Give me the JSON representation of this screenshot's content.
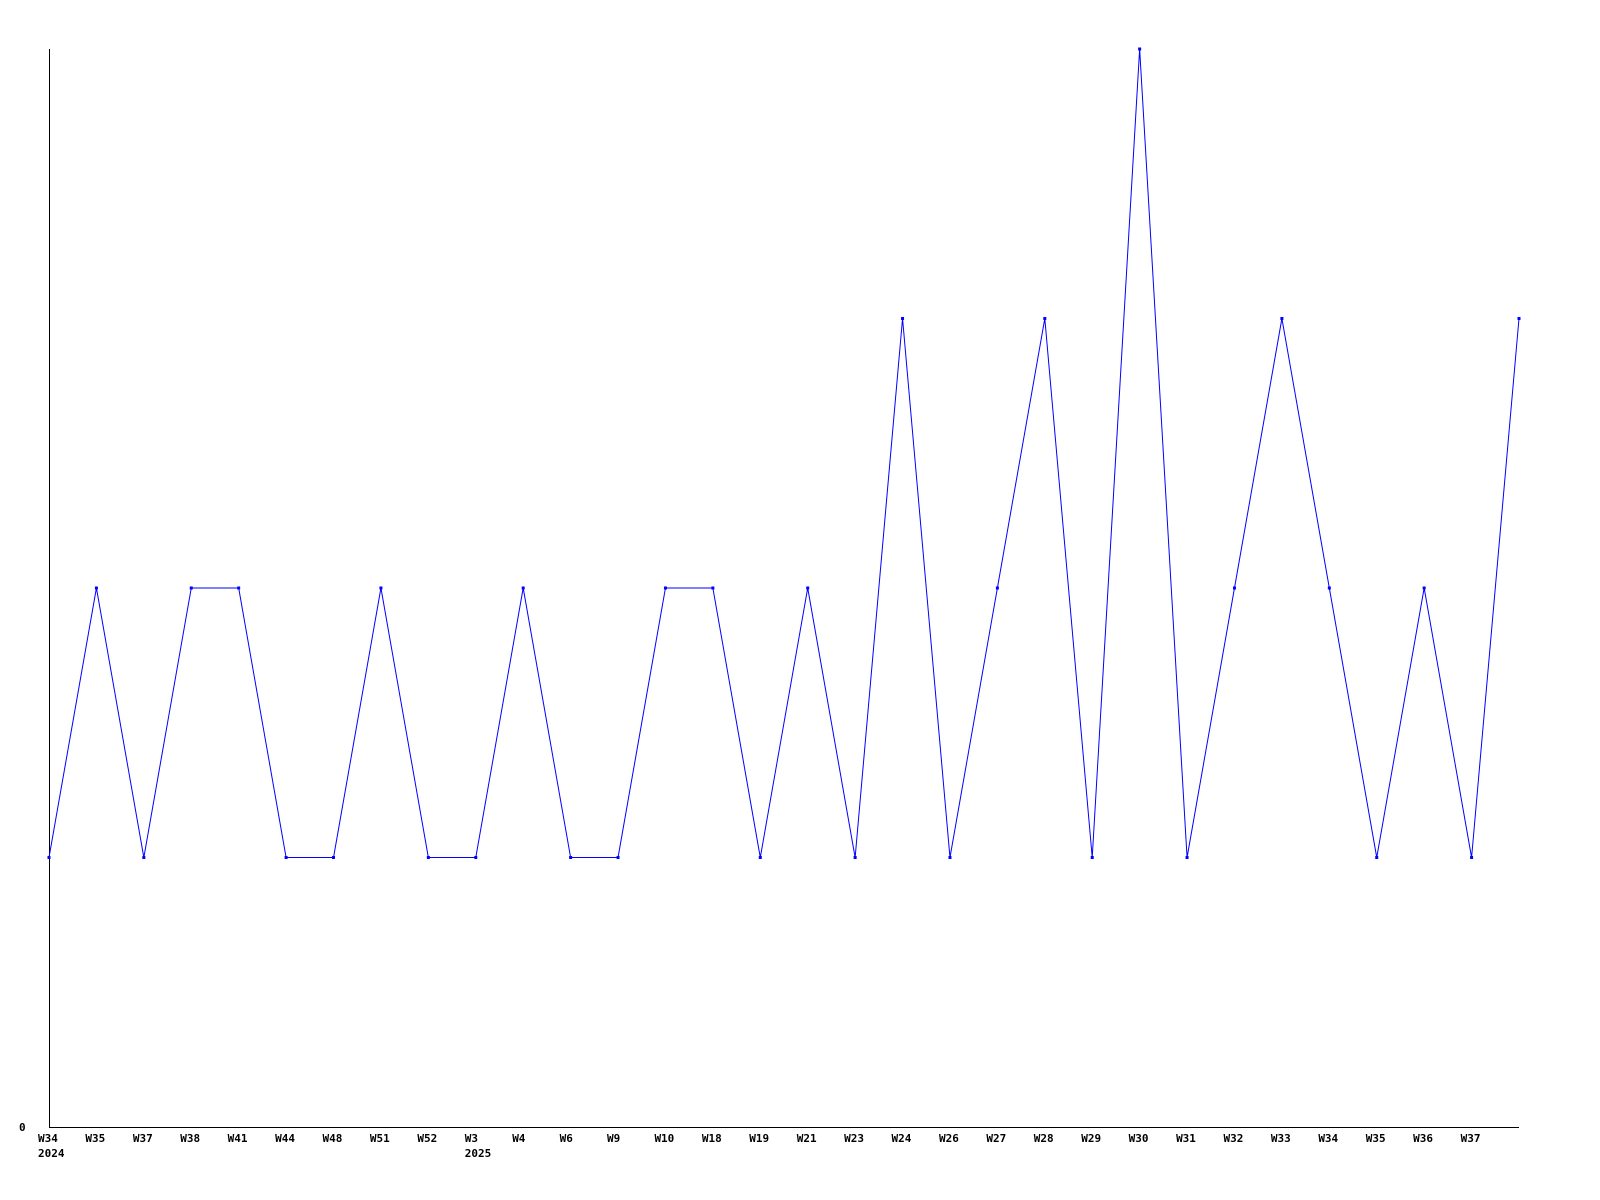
{
  "chart_data": {
    "type": "line",
    "title": "",
    "xlabel": "",
    "ylabel": "",
    "ylim": [
      0,
      4
    ],
    "y_tick_labels": [
      "0"
    ],
    "grid": false,
    "legend": "none",
    "line_color": "#0000ff",
    "categories": [
      "W34",
      "W35",
      "W37",
      "W38",
      "W41",
      "W44",
      "W48",
      "W51",
      "W52",
      "W3",
      "W4",
      "W6",
      "W9",
      "W10",
      "W18",
      "W19",
      "W21",
      "W23",
      "W24",
      "W26",
      "W27",
      "W28",
      "W29",
      "W30",
      "W31",
      "W32",
      "W33",
      "W34",
      "W35",
      "W36",
      "W37",
      ""
    ],
    "year_labels": [
      {
        "at": "W34",
        "index": 0,
        "text": "2024"
      },
      {
        "at": "W3",
        "index": 9,
        "text": "2025"
      }
    ],
    "values": [
      1,
      2,
      1,
      2,
      2,
      1,
      1,
      2,
      1,
      1,
      2,
      1,
      1,
      2,
      2,
      1,
      2,
      1,
      3,
      1,
      2,
      3,
      1,
      4,
      1,
      2,
      3,
      2,
      1,
      2,
      1,
      3
    ]
  }
}
